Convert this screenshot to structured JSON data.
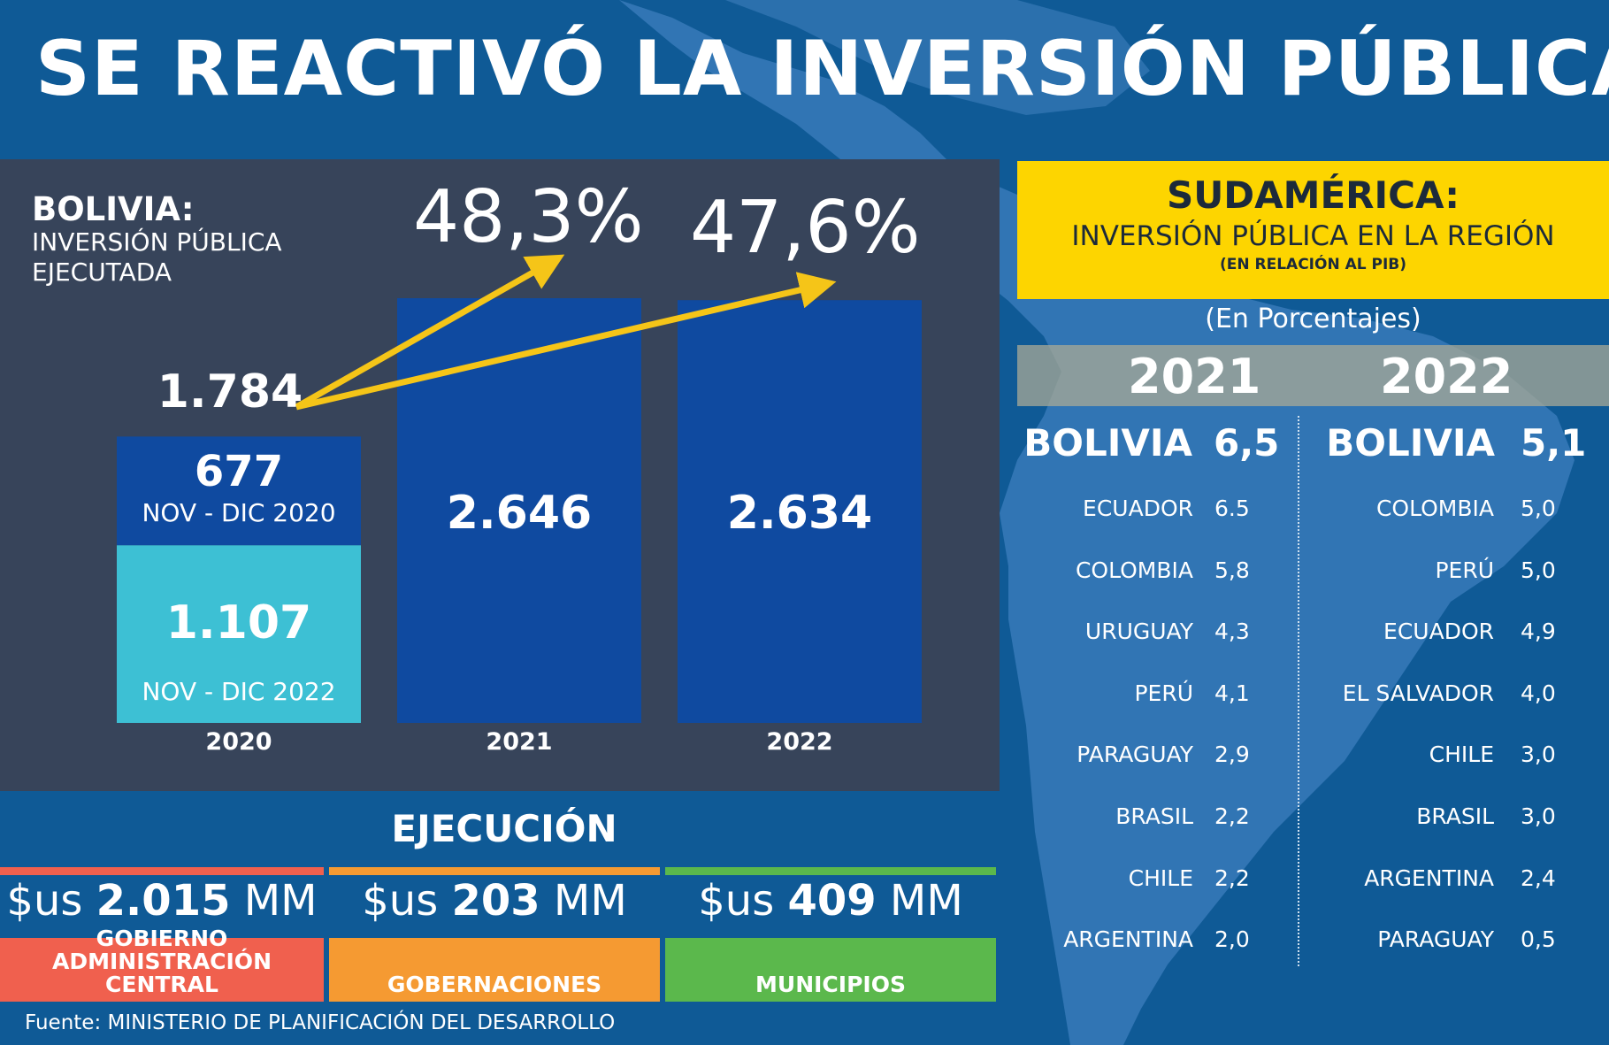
{
  "title": "SE REACTIVÓ LA INVERSIÓN PÚBLICA",
  "colors": {
    "background": "#0f5a96",
    "panel": "#37445a",
    "bar_dark": "#0f4aa0",
    "bar_light": "#3dc0d4",
    "arrow": "#f5c518",
    "yellow": "#fdd500",
    "stripe_red": "#f0604e",
    "stripe_orange": "#f59a32",
    "stripe_green": "#5bb84c"
  },
  "chart_data": {
    "type": "bar",
    "title": "BOLIVIA:",
    "subtitle": "INVERSIÓN PÚBLICA EJECUTADA",
    "categories": [
      "2020",
      "2021",
      "2022"
    ],
    "totals": [
      1784,
      2646,
      2634
    ],
    "total_labels": [
      "1.784",
      "2.646",
      "2.634"
    ],
    "segments_2020": [
      {
        "value_label": "677",
        "period": "NOV - DIC 2020",
        "value": 677
      },
      {
        "value_label": "1.107",
        "period": "NOV - DIC 2022",
        "value": 1107
      }
    ],
    "growth": [
      {
        "target": "2021",
        "label": "48,3%"
      },
      {
        "target": "2022",
        "label": "47,6%"
      }
    ],
    "ylim": [
      0,
      2700
    ]
  },
  "execution": {
    "title": "EJECUCIÓN",
    "items": [
      {
        "prefix": "$us ",
        "amount": "2.015",
        "unit": " MM",
        "label": "GOBIERNO ADMINISTRACIÓN CENTRAL",
        "label_lines": [
          "GOBIERNO",
          "ADMINISTRACIÓN CENTRAL"
        ],
        "color": "#f0604e"
      },
      {
        "prefix": "$us ",
        "amount": "203",
        "unit": " MM",
        "label": "GOBERNACIONES",
        "label_lines": [
          "GOBERNACIONES"
        ],
        "color": "#f59a32"
      },
      {
        "prefix": "$us ",
        "amount": "409",
        "unit": " MM",
        "label": "MUNICIPIOS",
        "label_lines": [
          "MUNICIPIOS"
        ],
        "color": "#5bb84c"
      }
    ]
  },
  "source": "Fuente: MINISTERIO DE PLANIFICACIÓN DEL DESARROLLO",
  "region": {
    "title": "SUDAMÉRICA:",
    "subtitle": "INVERSIÓN PÚBLICA EN LA REGIÓN",
    "note": "(EN RELACIÓN AL PIB)",
    "unit": "(En Porcentajes)",
    "years": [
      "2021",
      "2022"
    ],
    "table_2021": [
      {
        "country": "BOLIVIA",
        "value": "6,5"
      },
      {
        "country": "ECUADOR",
        "value": "6.5"
      },
      {
        "country": "COLOMBIA",
        "value": "5,8"
      },
      {
        "country": "URUGUAY",
        "value": "4,3"
      },
      {
        "country": "PERÚ",
        "value": "4,1"
      },
      {
        "country": "PARAGUAY",
        "value": "2,9"
      },
      {
        "country": "BRASIL",
        "value": "2,2"
      },
      {
        "country": "CHILE",
        "value": "2,2"
      },
      {
        "country": "ARGENTINA",
        "value": "2,0"
      }
    ],
    "table_2022": [
      {
        "country": "BOLIVIA",
        "value": "5,1"
      },
      {
        "country": "COLOMBIA",
        "value": "5,0"
      },
      {
        "country": "PERÚ",
        "value": "5,0"
      },
      {
        "country": "ECUADOR",
        "value": "4,9"
      },
      {
        "country": "EL SALVADOR",
        "value": "4,0"
      },
      {
        "country": "CHILE",
        "value": "3,0"
      },
      {
        "country": "BRASIL",
        "value": "3,0"
      },
      {
        "country": "ARGENTINA",
        "value": "2,4"
      },
      {
        "country": "PARAGUAY",
        "value": "0,5"
      }
    ]
  }
}
